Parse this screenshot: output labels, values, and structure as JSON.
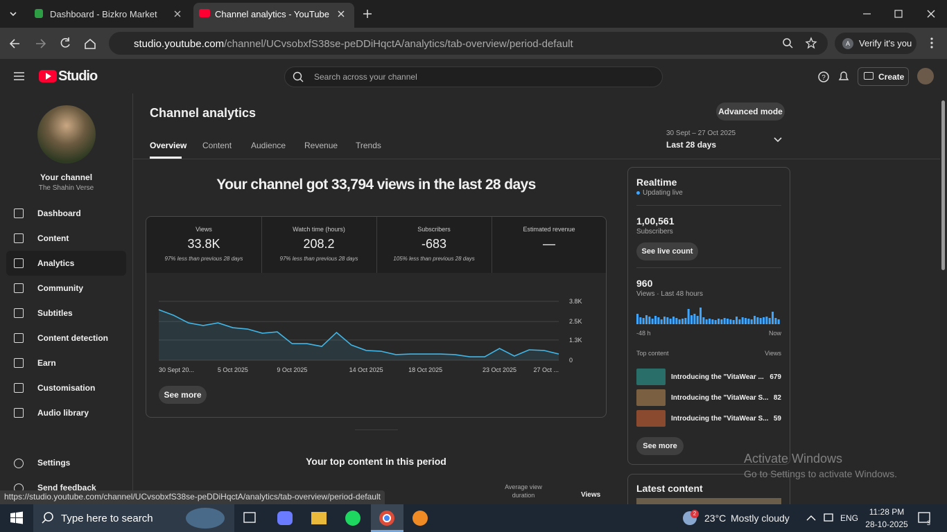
{
  "browser": {
    "tabs": [
      "Dashboard - Bizkro Market",
      "Channel analytics - YouTube Stu"
    ],
    "url_host": "studio.youtube.com",
    "url_path": "/channel/UCvsobxfS38se-peDDiHqctA/analytics/tab-overview/period-default",
    "verify": "Verify it's you",
    "status_url": "https://studio.youtube.com/channel/UCvsobxfS38se-peDDiHqctA/analytics/tab-overview/period-default"
  },
  "header": {
    "logo": "Studio",
    "search_placeholder": "Search across your channel",
    "create": "Create"
  },
  "sidebar": {
    "channel_label": "Your channel",
    "channel_name": "The Shahin Verse",
    "nav": [
      "Dashboard",
      "Content",
      "Analytics",
      "Community",
      "Subtitles",
      "Content detection",
      "Earn",
      "Customisation",
      "Audio library"
    ],
    "bottom": [
      "Settings",
      "Send feedback"
    ]
  },
  "page": {
    "title": "Channel analytics",
    "advanced_mode": "Advanced mode",
    "tabs": [
      "Overview",
      "Content",
      "Audience",
      "Revenue",
      "Trends"
    ],
    "date_range": "30 Sept – 27 Oct 2025",
    "period": "Last 28 days",
    "headline": "Your channel got 33,794 views in the last 28 days",
    "metrics": [
      {
        "label": "Views",
        "value": "33.8K",
        "note": "97% less than previous 28 days"
      },
      {
        "label": "Watch time (hours)",
        "value": "208.2",
        "note": "97% less than previous 28 days"
      },
      {
        "label": "Subscribers",
        "value": "-683",
        "note": "105% less than previous 28 days"
      },
      {
        "label": "Estimated revenue",
        "value": "—"
      }
    ],
    "see_more": "See more",
    "top_content_title": "Your top content in this period",
    "col_avg": "Average view duration",
    "col_views": "Views"
  },
  "views_chart": {
    "type": "line",
    "categories": [
      "30 Sept 20...",
      null,
      null,
      null,
      null,
      "5 Oct 2025",
      null,
      null,
      null,
      "9 Oct 2025",
      null,
      null,
      null,
      null,
      "14 Oct 2025",
      null,
      null,
      null,
      "18 Oct 2025",
      null,
      null,
      null,
      null,
      "23 Oct 2025",
      null,
      null,
      null,
      "27 Oct ..."
    ],
    "values": [
      3260,
      2900,
      2410,
      2240,
      2410,
      2100,
      2010,
      1740,
      1830,
      1070,
      1070,
      890,
      1790,
      980,
      630,
      580,
      360,
      400,
      400,
      400,
      360,
      220,
      220,
      760,
      270,
      670,
      630,
      400
    ],
    "ylim": [
      0,
      3800
    ],
    "yticks": [
      0,
      {
        "value": 1300,
        "label": "1.3K"
      },
      {
        "value": 2500,
        "label": "2.5K"
      },
      {
        "value": 3800,
        "label": "3.8K"
      }
    ],
    "color": "#41b6e6",
    "grid": true
  },
  "realtime": {
    "title": "Realtime",
    "status": "Updating live",
    "subscribers": "1,00,561",
    "subscribers_label": "Subscribers",
    "live_count": "See live count",
    "views": "960",
    "views_label": "Views · Last 48 hours",
    "chart": {
      "type": "bar",
      "values": [
        30,
        20,
        18,
        26,
        22,
        16,
        24,
        20,
        14,
        22,
        20,
        16,
        22,
        18,
        14,
        16,
        18,
        44,
        26,
        30,
        24,
        48,
        20,
        14,
        16,
        14,
        12,
        16,
        14,
        18,
        16,
        14,
        12,
        22,
        14,
        20,
        18,
        16,
        14,
        24,
        20,
        18,
        20,
        22,
        18,
        36,
        18,
        14
      ],
      "color": "#3ea6ff",
      "x_start": "-48 h",
      "x_end": "Now"
    },
    "top_content": "Top content",
    "views_col": "Views",
    "items": [
      {
        "title": "Introducing the \"VitaWear ...",
        "views": "679"
      },
      {
        "title": "Introducing the \"VitaWear S...",
        "views": "82"
      },
      {
        "title": "Introducing the \"VitaWear S...",
        "views": "59"
      }
    ],
    "see_more": "See more",
    "latest": "Latest content"
  },
  "activation": {
    "title": "Activate Windows",
    "subtitle": "Go to Settings to activate Windows."
  },
  "taskbar": {
    "search": "Type here to search",
    "weather_badge": "2",
    "temperature": "23°C",
    "weather": "Mostly cloudy",
    "lang": "ENG",
    "time": "11:28 PM",
    "date": "28-10-2025",
    "notifications": "3"
  }
}
